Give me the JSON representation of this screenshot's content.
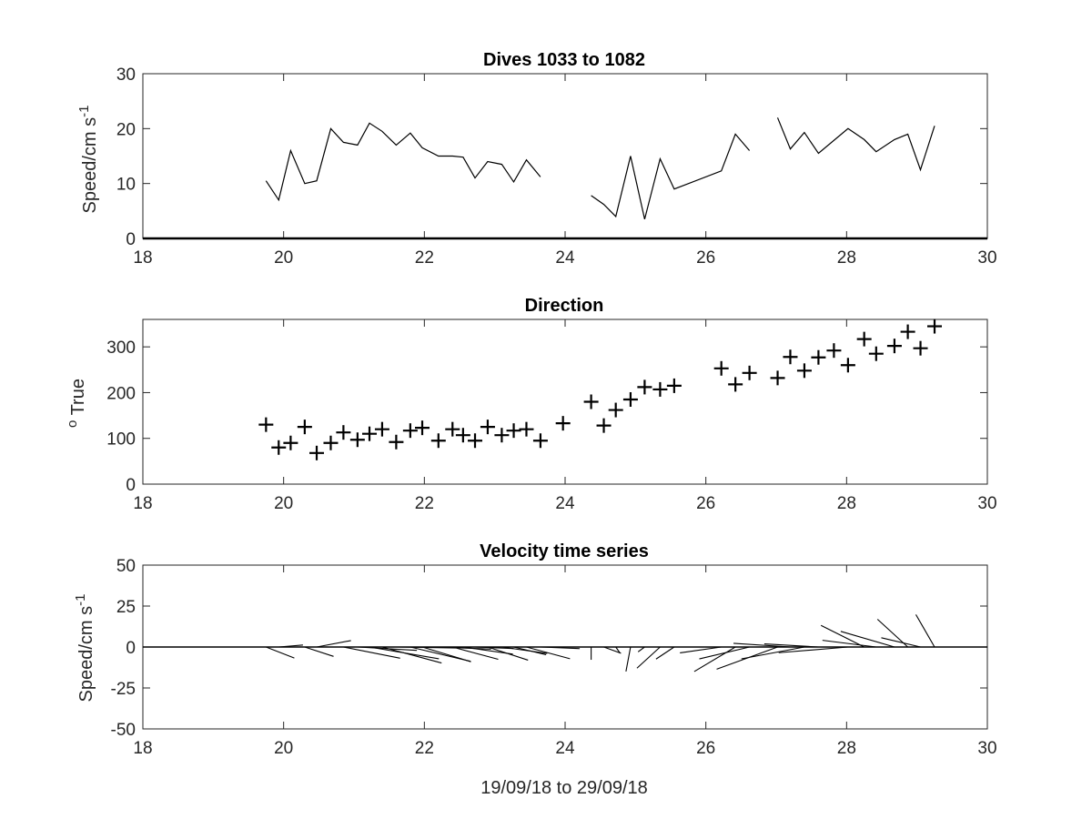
{
  "chart_data": [
    {
      "type": "line",
      "title": "Dives 1033 to 1082",
      "ylabel": "Speed/cm s",
      "ylabel_sup": "-1",
      "xlim": [
        18,
        30
      ],
      "ylim": [
        0,
        30
      ],
      "xticks": [
        "18",
        "20",
        "22",
        "24",
        "26",
        "28",
        "30"
      ],
      "yticks": [
        "0",
        "10",
        "20",
        "30"
      ],
      "series": [
        {
          "x": [
            19.75,
            19.93,
            20.1,
            20.3,
            20.47,
            20.67,
            20.85,
            21.05,
            21.22,
            21.4,
            21.6,
            21.8,
            21.97,
            22.2,
            22.4,
            22.55,
            22.72,
            22.9,
            23.1,
            23.27,
            23.45,
            23.65
          ],
          "y": [
            10.5,
            7,
            16,
            10,
            10.5,
            20,
            17.5,
            17,
            21,
            19.5,
            17,
            19.2,
            16.5,
            15,
            15,
            14.8,
            11,
            14,
            13.5,
            10.3,
            14.3,
            11.2
          ]
        },
        {
          "x": [
            24.37,
            24.55,
            24.72,
            24.93,
            25.13,
            25.35,
            25.55,
            26.22,
            26.42,
            26.62
          ],
          "y": [
            7.8,
            6.2,
            4,
            15,
            3.5,
            14.5,
            9,
            12.3,
            19,
            16
          ]
        },
        {
          "x": [
            27.02,
            27.2,
            27.4,
            27.6,
            28.02,
            28.25,
            28.42,
            28.68,
            28.87,
            29.05,
            29.25
          ],
          "y": [
            22,
            16.3,
            19.3,
            15.5,
            20,
            18,
            15.8,
            18,
            19,
            12.5,
            20.5
          ]
        }
      ]
    },
    {
      "type": "scatter",
      "title": "Direction",
      "ylabel": "True",
      "ylabel_prefix": "o",
      "marker": "+",
      "xlim": [
        18,
        30
      ],
      "ylim": [
        0,
        360
      ],
      "xticks": [
        "18",
        "20",
        "22",
        "24",
        "26",
        "28",
        "30"
      ],
      "yticks": [
        "0",
        "100",
        "200",
        "300"
      ],
      "x": [
        19.75,
        19.93,
        20.1,
        20.3,
        20.47,
        20.67,
        20.85,
        21.05,
        21.22,
        21.4,
        21.6,
        21.8,
        21.97,
        22.2,
        22.4,
        22.55,
        22.72,
        22.9,
        23.1,
        23.27,
        23.45,
        23.65,
        23.97,
        24.37,
        24.55,
        24.72,
        24.93,
        25.13,
        25.35,
        25.55,
        26.22,
        26.42,
        26.62,
        27.02,
        27.2,
        27.4,
        27.6,
        27.82,
        28.02,
        28.25,
        28.42,
        28.68,
        28.87,
        29.05,
        29.25
      ],
      "y": [
        130,
        80,
        90,
        125,
        68,
        90,
        113,
        97,
        110,
        120,
        92,
        117,
        123,
        95,
        120,
        107,
        95,
        125,
        107,
        117,
        120,
        95,
        133,
        180,
        128,
        162,
        185,
        212,
        207,
        215,
        253,
        218,
        243,
        232,
        278,
        248,
        277,
        292,
        260,
        317,
        285,
        302,
        333,
        297,
        345
      ]
    },
    {
      "type": "quiver",
      "title": "Velocity time series",
      "ylabel": "Speed/cm s",
      "ylabel_sup": "-1",
      "xlabel": "19/09/18 to 29/09/18",
      "xlim": [
        18,
        30
      ],
      "ylim": [
        -50,
        50
      ],
      "xticks": [
        "18",
        "20",
        "22",
        "24",
        "26",
        "28",
        "30"
      ],
      "yticks": [
        "-50",
        "-25",
        "0",
        "25",
        "50"
      ],
      "units_per_cm_s": 0.05
    }
  ]
}
